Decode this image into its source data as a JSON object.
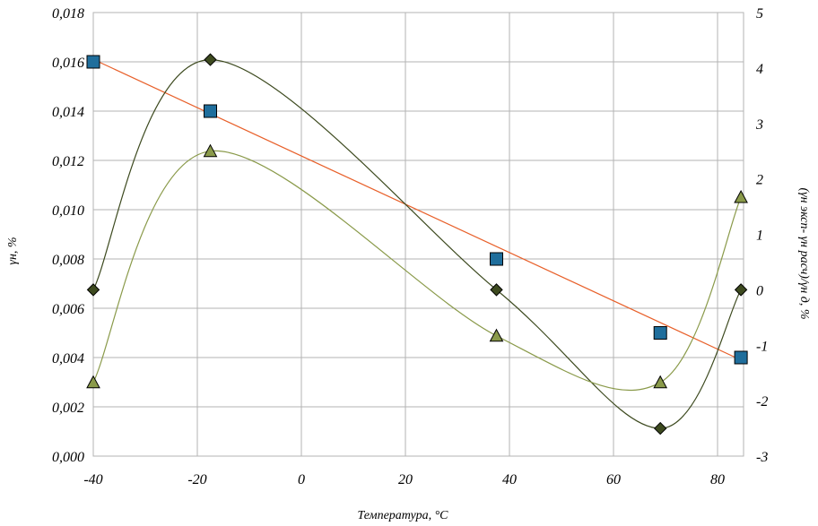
{
  "chart_data": {
    "type": "scatter",
    "xlabel": "Температура, °C",
    "ylabel_left": "γн, %",
    "ylabel_right": "(γн эксп- γн расч)/γн д, %",
    "xlim": [
      -40,
      85
    ],
    "ylim_left": [
      0,
      0.018
    ],
    "ylim_right": [
      -3,
      5
    ],
    "grid": true,
    "x_ticks": [
      "-40",
      "-20",
      "0",
      "20",
      "40",
      "60",
      "80"
    ],
    "y_left_ticks": [
      "0,000",
      "0,002",
      "0,004",
      "0,006",
      "0,008",
      "0,010",
      "0,012",
      "0,014",
      "0,016",
      "0,018"
    ],
    "y_right_ticks": [
      "-3",
      "-2",
      "-1",
      "0",
      "1",
      "2",
      "3",
      "4",
      "5"
    ],
    "series": [
      {
        "axis": "left",
        "marker": "square",
        "color": "#1f6e9c",
        "x": [
          -40,
          -17.5,
          37.5,
          69,
          84.5
        ],
        "y": [
          0.016,
          0.014,
          0.008,
          0.005,
          0.004
        ]
      },
      {
        "axis": "left",
        "marker": "none",
        "line": "linear-fit",
        "color": "#e8602a",
        "x": [
          -40,
          84.5
        ],
        "y": [
          0.0161,
          0.0039
        ]
      },
      {
        "axis": "right",
        "marker": "diamond",
        "line": "smooth",
        "color": "#3d4a1f",
        "x": [
          -40,
          -17.5,
          37.5,
          69,
          84.5
        ],
        "y": [
          0.0,
          4.15,
          0.0,
          -2.5,
          0.0
        ]
      },
      {
        "axis": "right",
        "marker": "triangle",
        "line": "smooth",
        "color": "#8a9a4a",
        "x": [
          -40,
          -17.5,
          37.5,
          69,
          84.5
        ],
        "y": [
          -1.67,
          2.5,
          -0.83,
          -1.67,
          1.67
        ]
      }
    ]
  }
}
